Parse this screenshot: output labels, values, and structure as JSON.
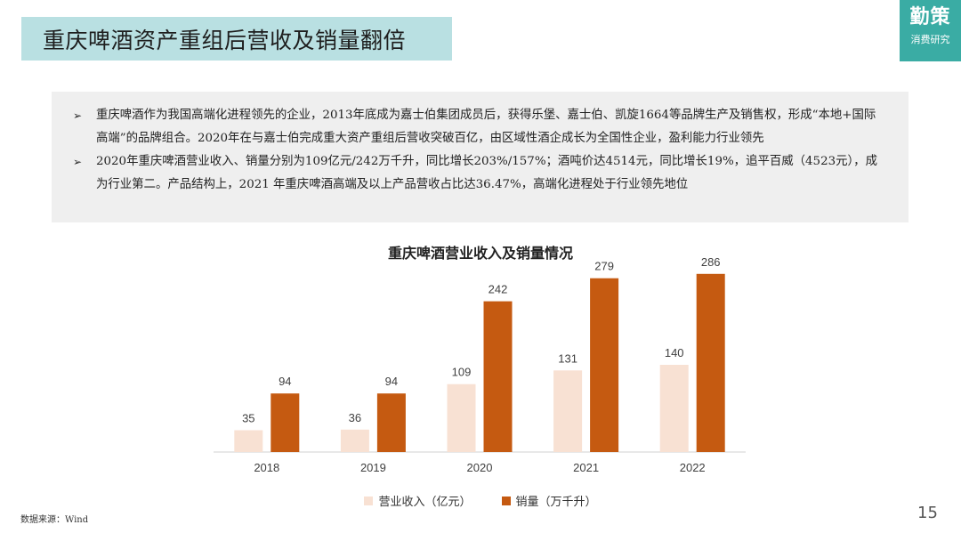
{
  "header": {
    "title": "重庆啤酒资产重组后营收及销量翻倍",
    "logo_main": "勤策",
    "logo_sub": "消费研究"
  },
  "summary": {
    "bullets": [
      "重庆啤酒作为我国高端化进程领先的企业，2013年底成为嘉士伯集团成员后，获得乐堡、嘉士伯、凯旋1664等品牌生产及销售权，形成“本地+国际高端”的品牌组合。2020年在与嘉士伯完成重大资产重组后营收突破百亿，由区域性酒企成长为全国性企业，盈利能力行业领先",
      "2020年重庆啤酒营业收入、销量分别为109亿元/242万千升，同比增长203%/157%；酒吨价达4514元，同比增长19%，追平百威（4523元），成为行业第二。产品结构上，2021 年重庆啤酒高端及以上产品营收占比达36.47%，高端化进程处于行业领先地位"
    ]
  },
  "colors": {
    "revenue": "#f8e1d3",
    "volume": "#c55a11",
    "title_bg": "#b9e0e2",
    "logo_bg": "#3aaca4"
  },
  "chart_data": {
    "type": "bar",
    "title": "重庆啤酒营业收入及销量情况",
    "categories": [
      "2018",
      "2019",
      "2020",
      "2021",
      "2022"
    ],
    "series": [
      {
        "name": "营业收入（亿元）",
        "values": [
          35,
          36,
          109,
          131,
          140
        ]
      },
      {
        "name": "销量（万千升）",
        "values": [
          94,
          94,
          242,
          279,
          286
        ]
      }
    ],
    "ylim": [
      0,
      300
    ],
    "grid": false,
    "legend": "bottom"
  },
  "footer": {
    "source": "数据来源：Wind",
    "page": "15"
  }
}
